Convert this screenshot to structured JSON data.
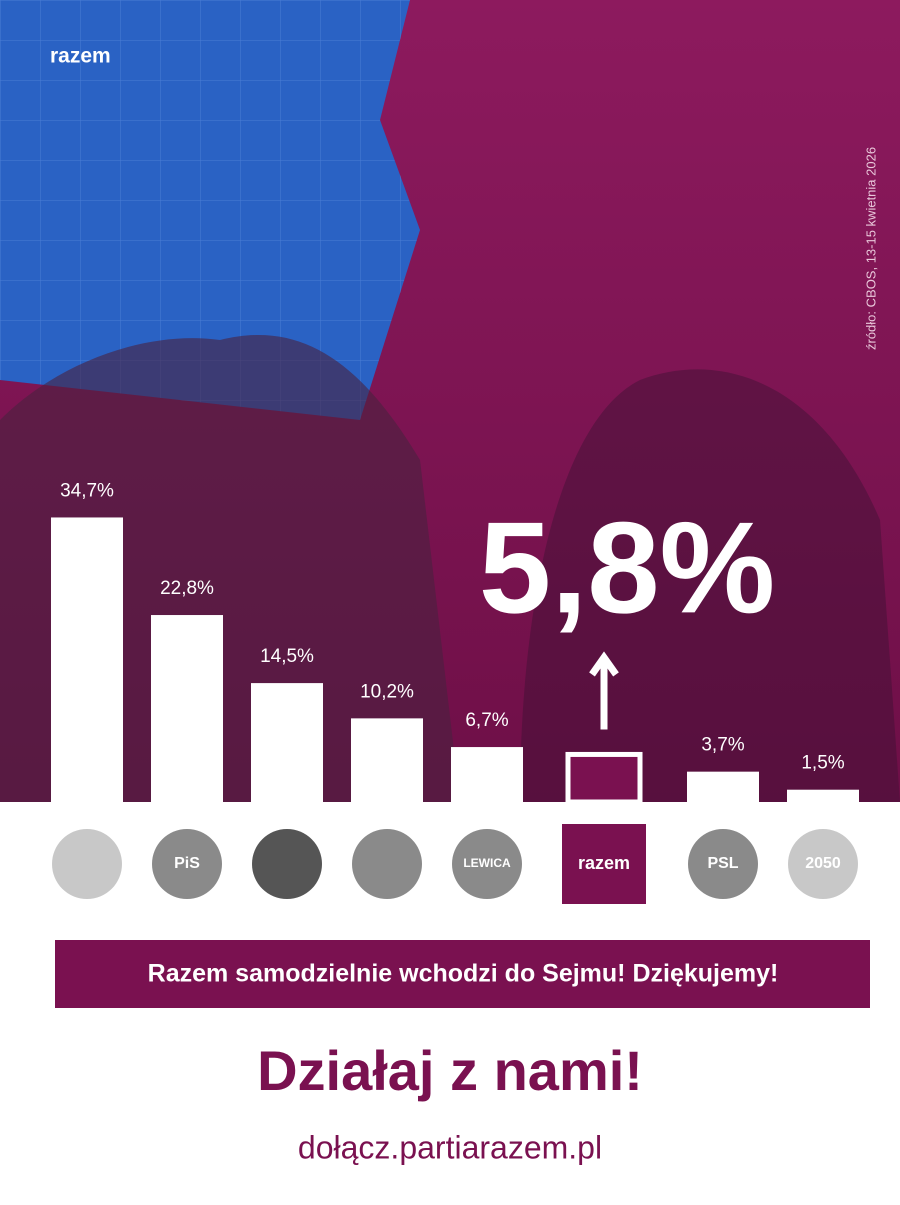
{
  "chart_data": {
    "type": "bar",
    "brand": "razem",
    "source": "źródło: CBOS, 13-15 kwietnia 2026",
    "categories": [
      null,
      "PiS",
      null,
      null,
      "LEWICA",
      "razem",
      "PSL",
      "2050"
    ],
    "values": [
      34.7,
      22.8,
      14.5,
      10.2,
      6.7,
      5.8,
      3.7,
      1.5
    ],
    "value_labels": [
      "34,7%",
      "22,8%",
      "14,5%",
      "10,2%",
      "6,7%",
      "5,8%",
      "3,7%",
      "1,5%"
    ],
    "color": "#ffffff",
    "colors": [
      "#ffffff",
      "#ffffff",
      "#ffffff",
      "#ffffff",
      "#ffffff",
      "#7a1150",
      "#ffffff",
      "#ffffff"
    ],
    "banner": "Razem samodzielnie wchodzi do Sejmu! Dziękujemy!",
    "headline": "Działaj z nami!",
    "url": "dołącz.partiarazem.pl"
  }
}
